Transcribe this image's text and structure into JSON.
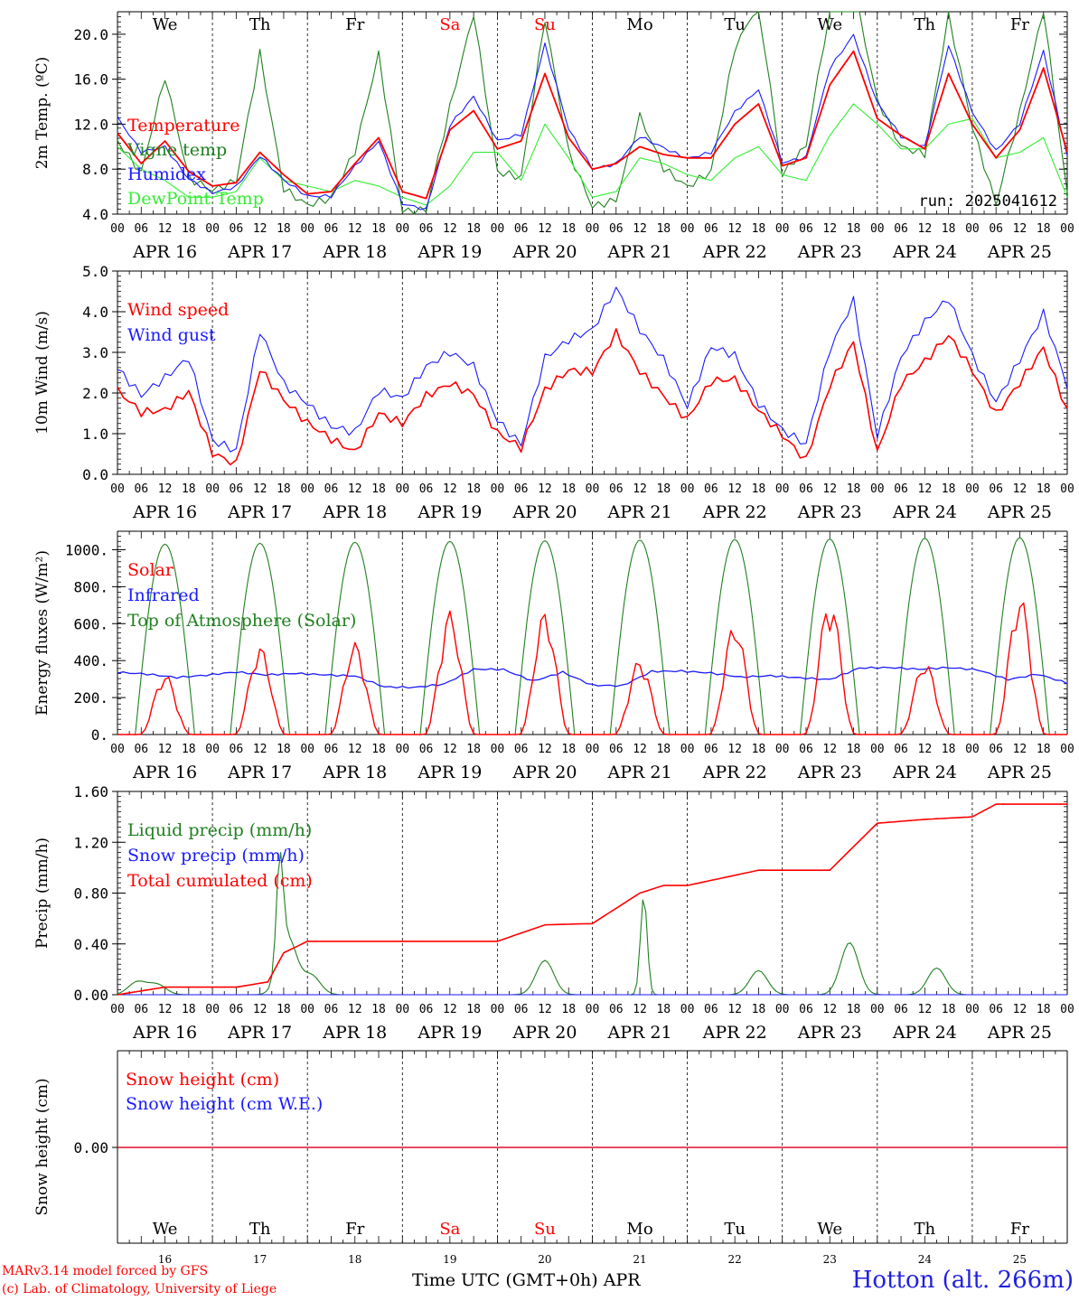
{
  "run_label": "run: 2025041612",
  "time_axis": {
    "hour_ticks": [
      "00",
      "06",
      "12",
      "18"
    ],
    "last_tick": "00",
    "dates": [
      "APR 16",
      "APR 17",
      "APR 18",
      "APR 19",
      "APR 20",
      "APR 21",
      "APR 22",
      "APR 23",
      "APR 24",
      "APR 25"
    ],
    "weekdays": [
      "We",
      "Th",
      "Fr",
      "Sa",
      "Su",
      "Mo",
      "Tu",
      "We",
      "Th",
      "Fr"
    ],
    "weekend_days": [
      3,
      4
    ],
    "day_numbers": [
      "16",
      "17",
      "18",
      "19",
      "20",
      "21",
      "22",
      "23",
      "24",
      "25"
    ],
    "month": "APR",
    "title": "Time UTC (GMT+0h)"
  },
  "footer": {
    "model": "MARv3.14 model forced by GFS",
    "copyright": "(c) Lab. of Climatology, University of Liege",
    "site": "Hotton (alt. 266m)"
  },
  "colors": {
    "red": "#ff0000",
    "blue": "#1a1aff",
    "green": "#208020",
    "lightgreen": "#33ee33"
  },
  "chart_data": [
    {
      "type": "line",
      "ylabel": "2m Temp. (ºC)",
      "ylim": [
        4,
        22
      ],
      "yticks": [
        "4.0",
        "8.0",
        "12.0",
        "16.0",
        "20.0"
      ],
      "x_hours": [
        0,
        6,
        12,
        18,
        24,
        30,
        36,
        42,
        48,
        54,
        60,
        66,
        72,
        78,
        84,
        90,
        96,
        102,
        108,
        114,
        120,
        126,
        132,
        138,
        144,
        150,
        156,
        162,
        168,
        174,
        180,
        186,
        192,
        198,
        204,
        210,
        216,
        222,
        228,
        234,
        240
      ],
      "series": [
        {
          "name": "Temperature",
          "color": "red",
          "values": [
            11.2,
            8.5,
            10.5,
            7.8,
            6.5,
            6.8,
            9.5,
            7.5,
            5.8,
            6.0,
            8.5,
            10.8,
            6.0,
            5.4,
            11.5,
            13.2,
            9.8,
            10.5,
            16.5,
            10.8,
            8.0,
            8.5,
            10.0,
            9.3,
            9.0,
            9.0,
            12.0,
            13.8,
            8.3,
            9.0,
            15.5,
            18.5,
            12.5,
            11.0,
            9.8,
            16.5,
            12.0,
            9.0,
            11.5,
            17.0,
            9.5
          ]
        },
        {
          "name": "Vigne temp",
          "color": "green",
          "values": [
            10.5,
            7.5,
            16.0,
            7.0,
            6.0,
            7.0,
            18.5,
            6.5,
            5.0,
            5.5,
            9.5,
            18.0,
            4.0,
            4.2,
            13.5,
            22.0,
            8.0,
            7.5,
            21.5,
            9.5,
            4.5,
            5.0,
            12.5,
            8.0,
            6.5,
            8.0,
            19.0,
            23.0,
            7.5,
            10.0,
            22.0,
            24.0,
            14.0,
            10.0,
            9.5,
            22.0,
            12.0,
            5.0,
            13.0,
            22.0,
            5.5
          ]
        },
        {
          "name": "Humidex",
          "color": "blue",
          "values": [
            12.5,
            9.5,
            10.0,
            7.2,
            6.0,
            6.5,
            9.2,
            7.0,
            5.5,
            5.5,
            8.2,
            10.5,
            5.0,
            4.5,
            12.0,
            14.5,
            10.5,
            11.0,
            19.0,
            11.5,
            8.0,
            8.5,
            11.0,
            10.0,
            9.0,
            9.5,
            13.0,
            15.0,
            8.5,
            9.0,
            17.0,
            20.0,
            14.0,
            11.0,
            10.0,
            19.0,
            13.0,
            9.5,
            12.0,
            18.5,
            9.2
          ]
        },
        {
          "name": "DewPoint Temp",
          "color": "lightgreen",
          "values": [
            10.0,
            8.0,
            7.0,
            5.5,
            5.5,
            6.0,
            9.0,
            7.0,
            6.5,
            6.0,
            7.0,
            6.5,
            5.5,
            4.8,
            6.5,
            9.5,
            9.5,
            7.0,
            12.0,
            9.0,
            5.5,
            6.0,
            9.0,
            8.5,
            7.5,
            7.0,
            9.0,
            10.0,
            7.5,
            7.0,
            11.0,
            13.8,
            12.0,
            9.8,
            9.8,
            12.0,
            12.5,
            9.0,
            9.5,
            10.8,
            5.5
          ]
        }
      ]
    },
    {
      "type": "line",
      "ylabel": "10m Wind (m/s)",
      "ylim": [
        0,
        5
      ],
      "yticks": [
        "0.0",
        "1.0",
        "2.0",
        "3.0",
        "4.0",
        "5.0"
      ],
      "x_hours": [
        0,
        6,
        12,
        18,
        24,
        30,
        36,
        42,
        48,
        54,
        60,
        66,
        72,
        78,
        84,
        90,
        96,
        102,
        108,
        114,
        120,
        126,
        132,
        138,
        144,
        150,
        156,
        162,
        168,
        174,
        180,
        186,
        192,
        198,
        204,
        210,
        216,
        222,
        228,
        234,
        240
      ],
      "series": [
        {
          "name": "Wind speed",
          "color": "red",
          "values": [
            2.0,
            1.5,
            1.6,
            2.1,
            0.6,
            0.3,
            2.6,
            1.8,
            1.2,
            0.8,
            0.5,
            1.5,
            1.3,
            2.0,
            2.3,
            2.0,
            1.0,
            0.6,
            2.0,
            2.5,
            2.5,
            3.5,
            2.6,
            2.0,
            1.4,
            2.3,
            2.3,
            1.5,
            0.9,
            0.3,
            2.2,
            3.3,
            0.6,
            2.3,
            2.8,
            3.4,
            2.5,
            1.4,
            2.2,
            3.1,
            1.6
          ]
        },
        {
          "name": "Wind gust",
          "color": "blue",
          "values": [
            2.6,
            1.9,
            2.3,
            2.8,
            0.8,
            0.6,
            3.6,
            2.3,
            1.8,
            1.2,
            1.0,
            2.0,
            1.8,
            2.6,
            3.0,
            2.7,
            1.4,
            0.8,
            2.9,
            3.3,
            3.5,
            4.5,
            3.5,
            2.8,
            1.7,
            3.2,
            3.0,
            1.8,
            1.1,
            0.7,
            3.0,
            4.2,
            0.9,
            2.9,
            3.8,
            4.4,
            3.0,
            1.8,
            2.8,
            3.9,
            2.1
          ]
        }
      ]
    },
    {
      "type": "line",
      "ylabel": "Energy fluxes (W/m²)",
      "ylim": [
        0,
        1100
      ],
      "yticks": [
        "0.",
        "200.",
        "400.",
        "600.",
        "800.",
        "1000."
      ],
      "toa_peaks": [
        1030,
        1035,
        1040,
        1045,
        1048,
        1052,
        1055,
        1058,
        1062,
        1065
      ],
      "solar_peaks": [
        330,
        480,
        500,
        670,
        670,
        410,
        610,
        740,
        400,
        760
      ],
      "infrared_values": [
        340,
        330,
        310,
        320,
        335,
        320,
        330,
        325,
        320,
        260,
        255,
        270,
        350,
        350,
        290,
        340,
        270,
        265,
        340,
        340,
        330,
        310,
        320,
        310,
        300,
        360,
        360,
        350,
        360,
        350,
        300,
        330,
        280
      ],
      "series": [
        {
          "name": "Solar",
          "color": "red"
        },
        {
          "name": "Infrared",
          "color": "blue"
        },
        {
          "name": "Top of Atmosphere (Solar)",
          "color": "green"
        }
      ]
    },
    {
      "type": "line",
      "ylabel": "Precip (mm/h)",
      "ylim": [
        0,
        1.6
      ],
      "yticks": [
        "0.00",
        "0.40",
        "0.80",
        "1.20",
        "1.60"
      ],
      "cumulated": {
        "x_hours": [
          0,
          12,
          30,
          38,
          42,
          48,
          96,
          108,
          120,
          132,
          138,
          144,
          162,
          180,
          192,
          204,
          216,
          222,
          240
        ],
        "values": [
          0.0,
          0.06,
          0.06,
          0.1,
          0.33,
          0.42,
          0.42,
          0.55,
          0.56,
          0.8,
          0.86,
          0.86,
          0.98,
          0.98,
          1.35,
          1.38,
          1.4,
          1.5,
          1.5
        ]
      },
      "liquid_peaks": {
        "x_hours": [
          5,
          10,
          41,
          43,
          49,
          108,
          133,
          162,
          185,
          207
        ],
        "values": [
          0.1,
          0.08,
          0.82,
          0.45,
          0.15,
          0.27,
          0.78,
          0.19,
          0.41,
          0.21
        ]
      },
      "series": [
        {
          "name": "Liquid precip (mm/h)",
          "color": "green"
        },
        {
          "name": "Snow precip (mm/h)",
          "color": "blue"
        },
        {
          "name": "Total cumulated (cm)",
          "color": "red"
        }
      ]
    },
    {
      "type": "line",
      "ylabel": "Snow height (cm)",
      "yticks": [
        "0.00"
      ],
      "series": [
        {
          "name": "Snow height (cm)",
          "color": "red",
          "values": [
            0
          ]
        },
        {
          "name": "Snow height (cm W.E.)",
          "color": "blue",
          "values": [
            0
          ]
        }
      ]
    }
  ]
}
